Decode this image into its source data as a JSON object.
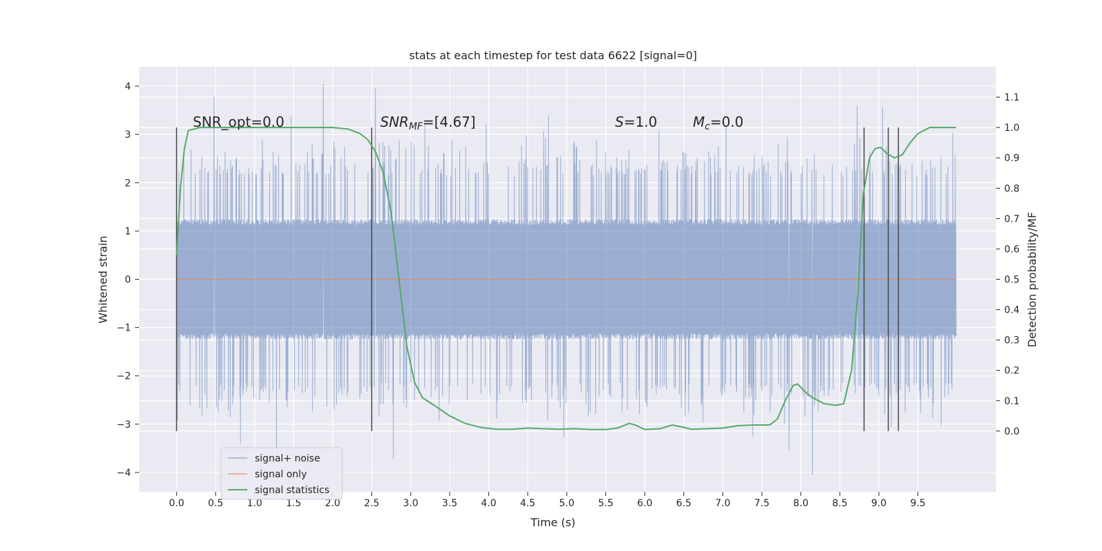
{
  "chart_data": {
    "type": "line",
    "title": "stats at each timestep for test data 6622 [signal=0]",
    "xlabel": "Time (s)",
    "ylabel_left": "Whitened strain",
    "ylabel_right": "Detection probability/MF",
    "xlim": [
      -0.48,
      10.5
    ],
    "ylim_left": [
      -4.4,
      4.4
    ],
    "ylim_right": [
      -0.2,
      1.2
    ],
    "x_ticks": [
      "0.0",
      "0.5",
      "1.0",
      "1.5",
      "2.0",
      "2.5",
      "3.0",
      "3.5",
      "4.0",
      "4.5",
      "5.0",
      "5.5",
      "6.0",
      "6.5",
      "7.0",
      "7.5",
      "8.0",
      "8.5",
      "9.0",
      "9.5"
    ],
    "y_ticks_left": [
      "−4",
      "−3",
      "−2",
      "−1",
      "0",
      "1",
      "2",
      "3",
      "4"
    ],
    "y_ticks_right": [
      "0.0",
      "0.1",
      "0.2",
      "0.3",
      "0.4",
      "0.5",
      "0.6",
      "0.7",
      "0.8",
      "0.9",
      "1.0",
      "1.1"
    ],
    "grid": true,
    "legend_position": "lower-left",
    "annotations": {
      "snr_opt": "SNR_opt=0.0",
      "snr_mf_main": "SNR",
      "snr_mf_sub": "MF",
      "snr_mf_value": "=[4.67]",
      "s_main": "S",
      "s_value": "=1.0",
      "mc_main": "M",
      "mc_sub": "c",
      "mc_value": "=0.0"
    },
    "vertical_markers_s": [
      0.0,
      2.5,
      8.81,
      9.12,
      9.25
    ],
    "series": [
      {
        "name": "signal+ noise",
        "axis": "left",
        "color": "#4c72b0",
        "kind": "noise",
        "x_range": [
          0.0,
          9.99
        ],
        "envelope_core": 1.25,
        "typical_peak": 2.6,
        "max": 4.05,
        "min": -4.05,
        "prominent_spikes": [
          {
            "x": 0.48,
            "y": 3.78
          },
          {
            "x": 1.28,
            "y": -3.55
          },
          {
            "x": 1.88,
            "y": 4.05
          },
          {
            "x": 2.55,
            "y": 3.95
          },
          {
            "x": 2.78,
            "y": -3.72
          },
          {
            "x": 7.85,
            "y": -3.55
          },
          {
            "x": 8.15,
            "y": -4.05
          },
          {
            "x": 8.72,
            "y": 3.6
          },
          {
            "x": 9.05,
            "y": 3.55
          }
        ]
      },
      {
        "name": "signal only",
        "axis": "left",
        "color": "#dd8452",
        "x": [
          0.0,
          9.99
        ],
        "y": [
          0.0,
          0.0
        ]
      },
      {
        "name": "signal statistics",
        "axis": "right",
        "color": "#55a868",
        "x": [
          0.0,
          0.05,
          0.1,
          0.15,
          0.3,
          0.6,
          1.0,
          1.5,
          2.0,
          2.2,
          2.35,
          2.45,
          2.55,
          2.65,
          2.75,
          2.85,
          2.95,
          3.05,
          3.15,
          3.3,
          3.5,
          3.7,
          3.9,
          4.1,
          4.3,
          4.5,
          4.7,
          4.9,
          5.1,
          5.3,
          5.5,
          5.65,
          5.8,
          5.88,
          6.0,
          6.2,
          6.35,
          6.45,
          6.6,
          6.8,
          7.0,
          7.2,
          7.4,
          7.6,
          7.7,
          7.8,
          7.9,
          7.96,
          8.05,
          8.15,
          8.3,
          8.45,
          8.55,
          8.65,
          8.73,
          8.8,
          8.88,
          8.95,
          9.02,
          9.1,
          9.2,
          9.3,
          9.4,
          9.5,
          9.65,
          9.8,
          9.99
        ],
        "y": [
          0.58,
          0.8,
          0.93,
          0.99,
          1.0,
          1.0,
          1.0,
          1.0,
          1.0,
          0.995,
          0.98,
          0.96,
          0.92,
          0.85,
          0.72,
          0.5,
          0.28,
          0.16,
          0.11,
          0.085,
          0.05,
          0.025,
          0.012,
          0.006,
          0.006,
          0.01,
          0.008,
          0.006,
          0.008,
          0.005,
          0.005,
          0.01,
          0.025,
          0.02,
          0.005,
          0.008,
          0.02,
          0.015,
          0.006,
          0.008,
          0.01,
          0.018,
          0.02,
          0.02,
          0.04,
          0.1,
          0.15,
          0.155,
          0.13,
          0.11,
          0.09,
          0.085,
          0.09,
          0.2,
          0.45,
          0.78,
          0.9,
          0.93,
          0.935,
          0.915,
          0.9,
          0.91,
          0.95,
          0.98,
          1.0,
          1.0,
          1.0
        ]
      }
    ]
  }
}
